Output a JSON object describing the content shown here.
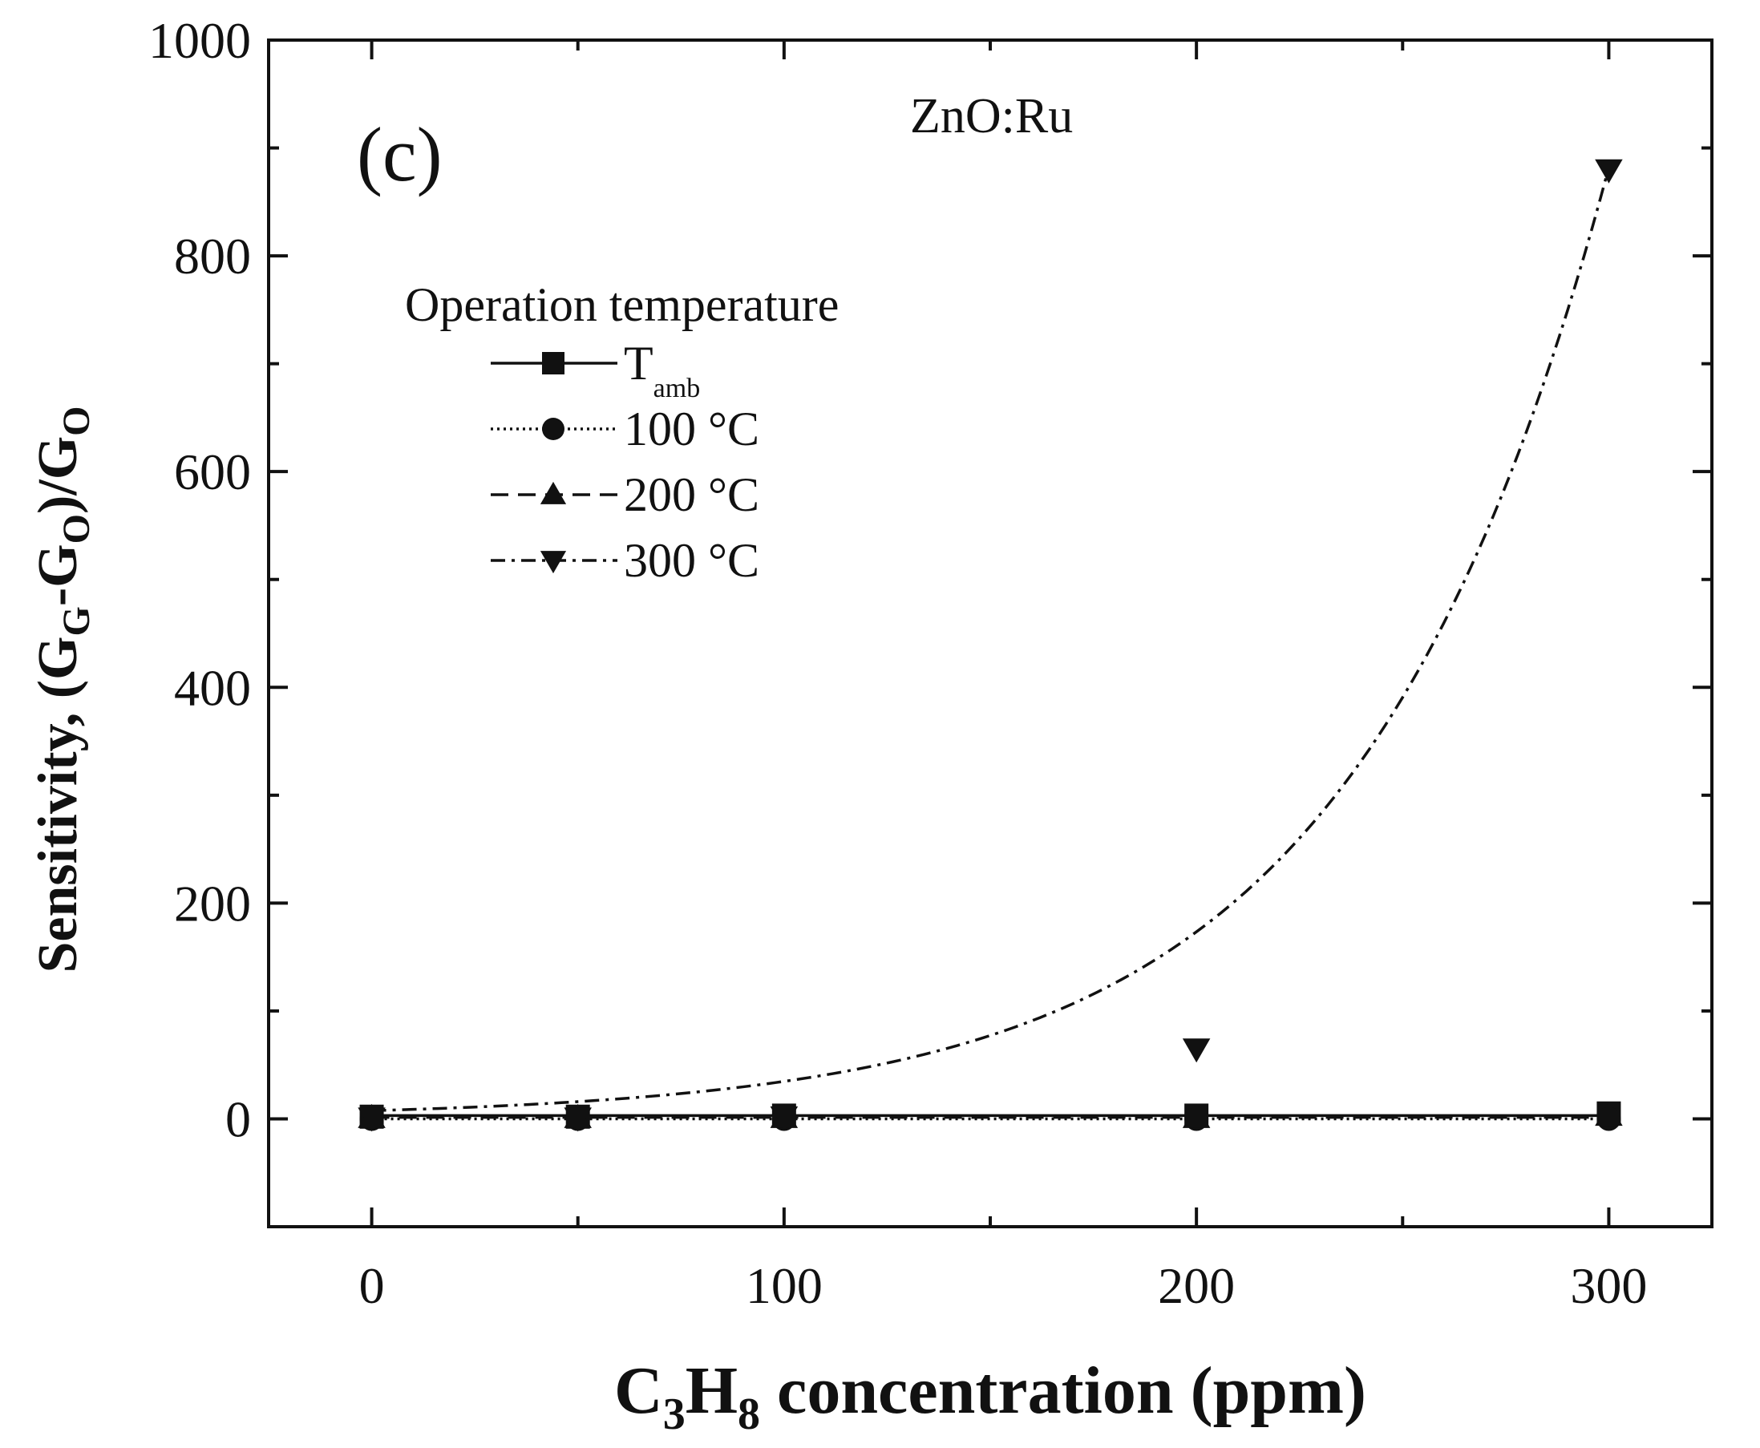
{
  "chart_data": {
    "type": "scatter",
    "panel_label": "(c)",
    "annotation": "ZnO:Ru",
    "xlabel": {
      "main_prefix": "C",
      "sub1": "3",
      "mid": "H",
      "sub2": "8",
      "suffix": " concentration (ppm)"
    },
    "ylabel": {
      "prefix": "Sensitivity, (G",
      "sub1": "G",
      "mid": "-G",
      "sub2": "O",
      "mid2": ")/G",
      "sub3": "O"
    },
    "xlim": [
      -25,
      325
    ],
    "ylim": [
      -100,
      1000
    ],
    "x_ticks": [
      0,
      100,
      200,
      300
    ],
    "x_tick_labels": [
      "0",
      "100",
      "200",
      "300"
    ],
    "y_ticks": [
      0,
      200,
      400,
      600,
      800,
      1000
    ],
    "y_tick_labels": [
      "0",
      "200",
      "400",
      "600",
      "800",
      "1000"
    ],
    "legend_title": "Operation temperature",
    "series": [
      {
        "name": "T",
        "name_sub": "amb",
        "marker": "square",
        "line": "solid",
        "x": [
          0,
          50,
          100,
          200,
          300
        ],
        "y": [
          2,
          2,
          3,
          3,
          5
        ]
      },
      {
        "name": "100 °C",
        "marker": "circle",
        "line": "dotted",
        "x": [
          0,
          50,
          100,
          200,
          300
        ],
        "y": [
          0,
          0,
          0,
          0,
          0
        ]
      },
      {
        "name": "200 °C",
        "marker": "triangle-up",
        "line": "dashed",
        "x": [
          0,
          50,
          100,
          200,
          300
        ],
        "y": [
          1,
          1,
          1,
          1,
          3
        ]
      },
      {
        "name": "300 °C",
        "marker": "triangle-down",
        "line": "dash-dot",
        "x": [
          0,
          50,
          100,
          200,
          300
        ],
        "y": [
          1,
          1,
          2,
          65,
          880
        ]
      }
    ],
    "fit_300C": {
      "y0": 1,
      "A": 6.6,
      "x0": 0,
      "t": 61.3
    }
  }
}
